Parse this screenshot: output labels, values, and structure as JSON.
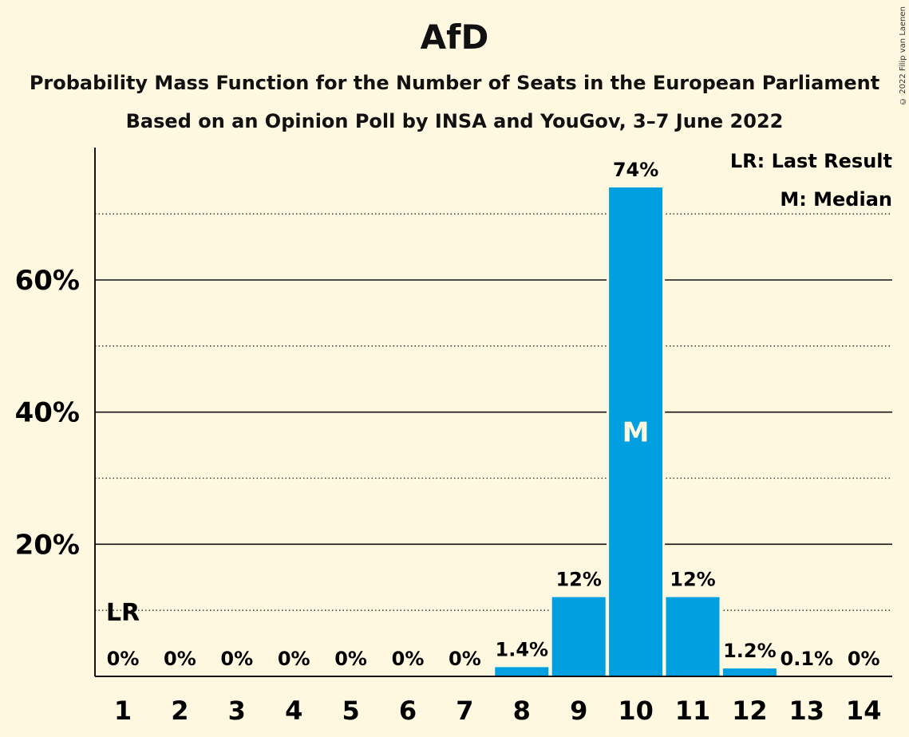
{
  "title": "AfD",
  "subtitle": "Probability Mass Function for the Number of Seats in the European Parliament",
  "subtitle2": "Based on an Opinion Poll by INSA and YouGov, 3–7 June 2022",
  "copyright": "© 2022 Filip van Laenen",
  "legend": {
    "lr": "LR: Last Result",
    "m": "M: Median"
  },
  "colors": {
    "bar": "#00a0e0",
    "background": "#fff8e1"
  },
  "chart_data": {
    "type": "bar",
    "categories": [
      "1",
      "2",
      "3",
      "4",
      "5",
      "6",
      "7",
      "8",
      "9",
      "10",
      "11",
      "12",
      "13",
      "14"
    ],
    "values": [
      0,
      0,
      0,
      0,
      0,
      0,
      0,
      1.4,
      12,
      74,
      12,
      1.2,
      0.1,
      0
    ],
    "data_labels": [
      "0%",
      "0%",
      "0%",
      "0%",
      "0%",
      "0%",
      "0%",
      "1.4%",
      "12%",
      "74%",
      "12%",
      "1.2%",
      "0.1%",
      "0%"
    ],
    "ylim": [
      0,
      80
    ],
    "yticks": [
      20,
      40,
      60
    ],
    "ytick_labels": [
      "20%",
      "40%",
      "60%"
    ],
    "minor_gridlines": [
      10,
      30,
      50,
      70
    ],
    "last_result_seat": "1",
    "last_result_label": "LR",
    "last_result_level": 10,
    "median_seat": "10",
    "median_label": "M",
    "grid": true,
    "legend_position": "top-right"
  }
}
